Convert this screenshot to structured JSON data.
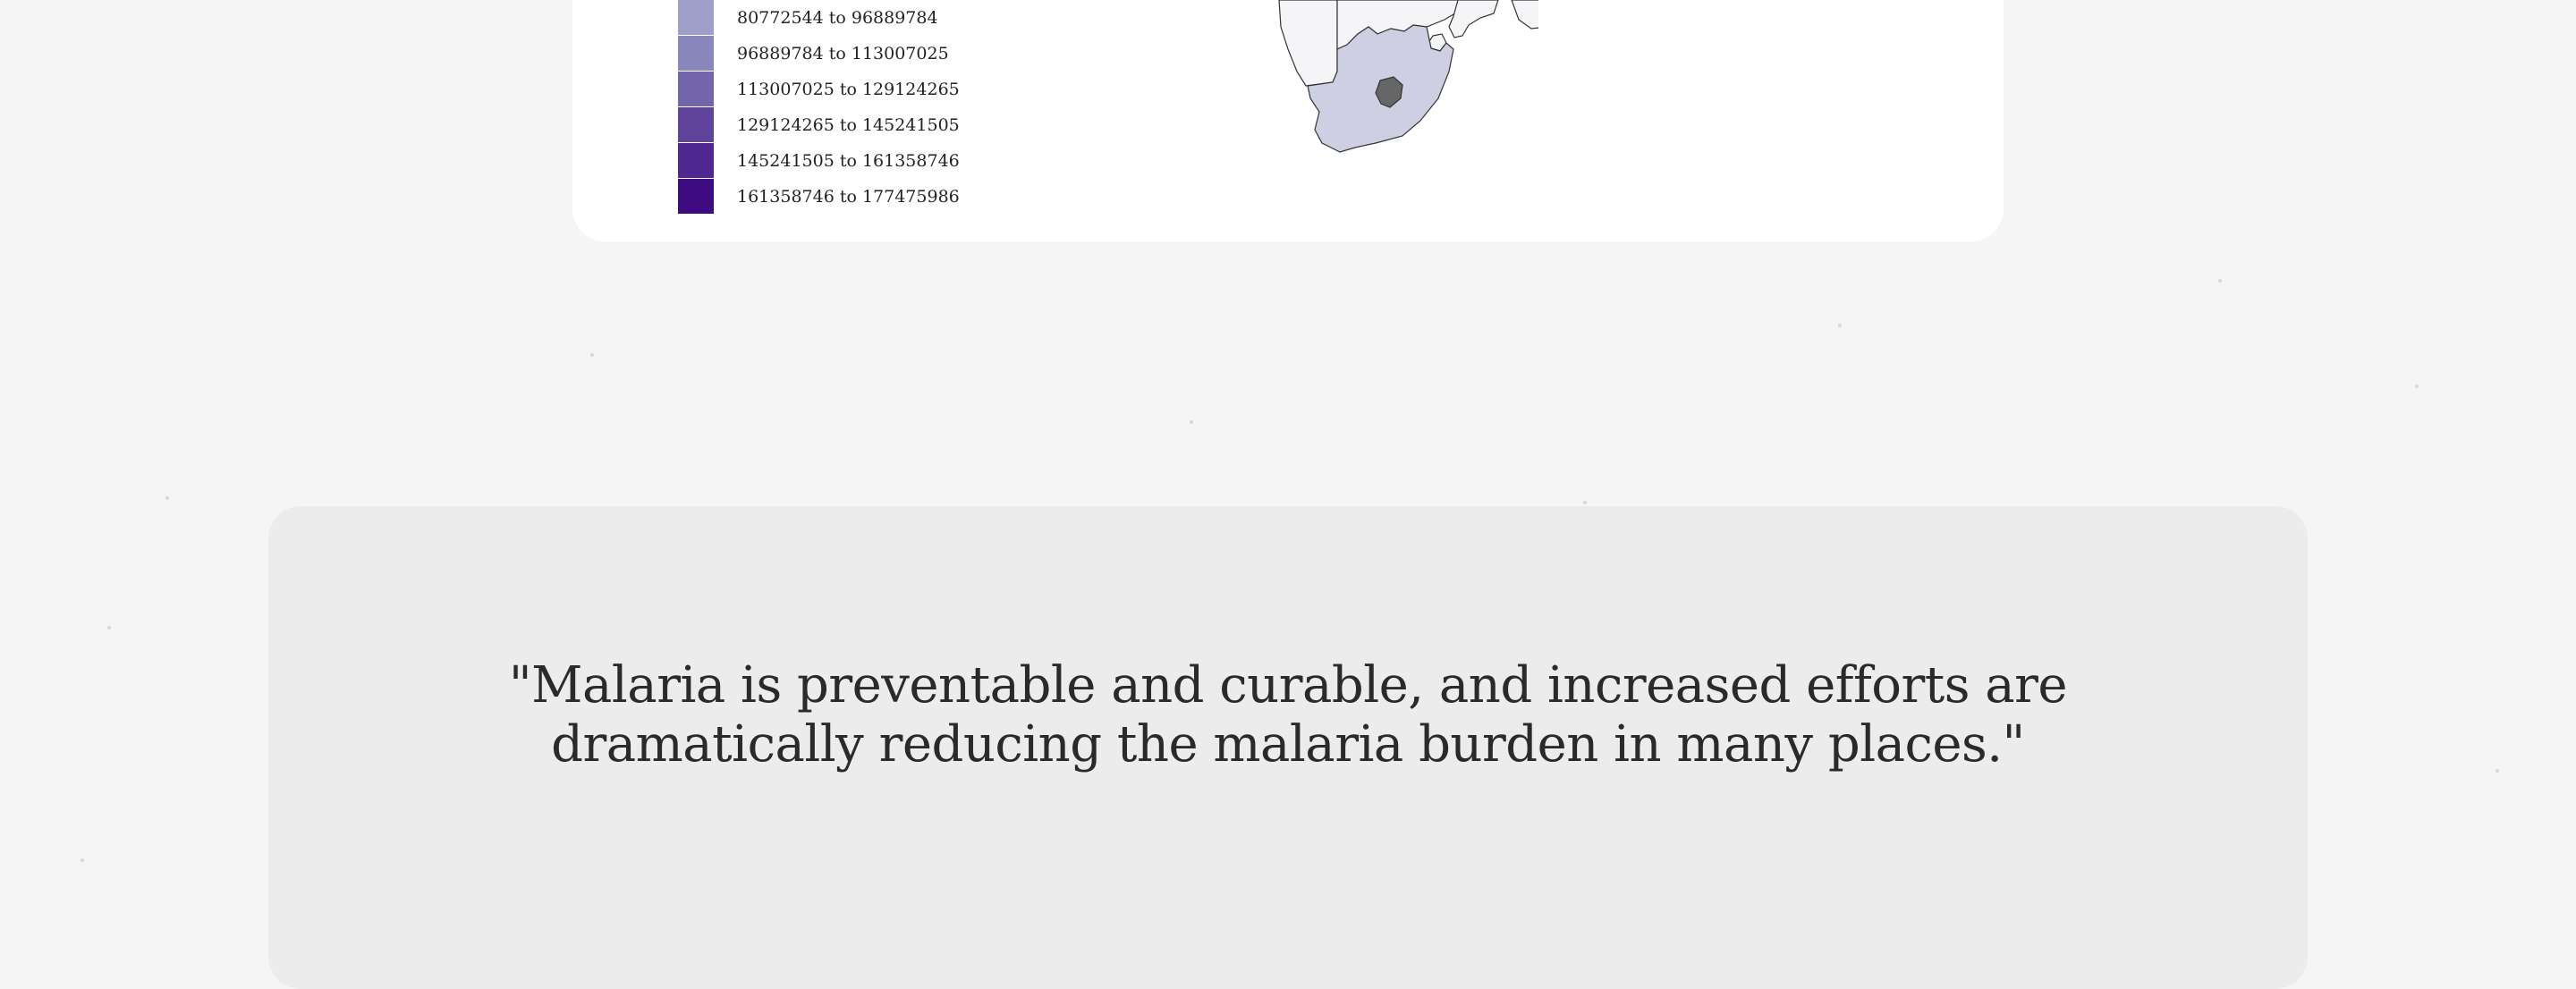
{
  "legend": {
    "items": [
      {
        "label": "80772544 to 96889784",
        "color": "#a09fca"
      },
      {
        "label": "96889784 to 113007025",
        "color": "#8986bb"
      },
      {
        "label": "113007025 to 129124265",
        "color": "#7366ad"
      },
      {
        "label": "129124265 to 145241505",
        "color": "#5f439a"
      },
      {
        "label": "145241505 to 161358746",
        "color": "#4e2890"
      },
      {
        "label": "161358746 to 177475986",
        "color": "#3f0b80"
      }
    ]
  },
  "map": {
    "colors": {
      "south_africa": "#cfcfe3",
      "neighbors": "#f5f5f8",
      "lesotho": "#666666",
      "border": "#333333"
    }
  },
  "quote": {
    "line1": "\"Malaria is preventable and curable, and increased efforts are",
    "line2": "dramatically reducing the malaria burden in many places.\""
  }
}
